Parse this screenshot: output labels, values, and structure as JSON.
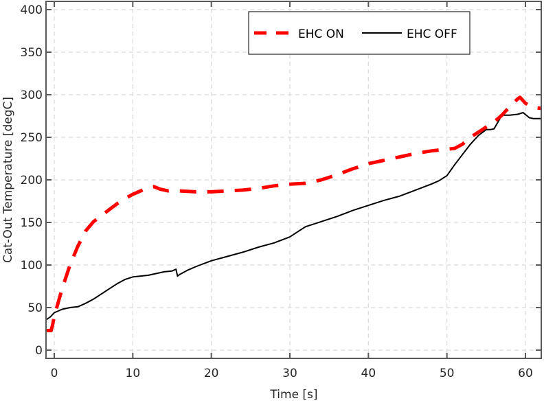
{
  "chart_data": {
    "type": "line",
    "title": "",
    "xlabel": "Time [s]",
    "ylabel": "Cat-Out Temperature [degC]",
    "xlim": [
      -1,
      62
    ],
    "ylim": [
      -10,
      410
    ],
    "xticks": [
      0,
      10,
      20,
      30,
      40,
      50,
      60
    ],
    "yticks": [
      0,
      50,
      100,
      150,
      200,
      250,
      300,
      350,
      400
    ],
    "grid": true,
    "legend_position": "upper right (inside)",
    "series": [
      {
        "name": "EHC ON",
        "color": "#ff0000",
        "style": "dashed",
        "x": [
          -1,
          -0.4,
          -0.2,
          0,
          1,
          2,
          3,
          4,
          5,
          6,
          7,
          8,
          9,
          10,
          11,
          12,
          12.7,
          13.5,
          14.5,
          16,
          18,
          20,
          22,
          24,
          26,
          28,
          30,
          32,
          34,
          36,
          38,
          40,
          42,
          44,
          46,
          48,
          50,
          51,
          52,
          53,
          54,
          55,
          56,
          57,
          58,
          59,
          59.3,
          60,
          61,
          62
        ],
        "y": [
          23,
          23,
          30,
          40,
          72,
          100,
          122,
          140,
          151,
          158,
          165,
          172,
          178,
          183,
          187,
          191,
          192,
          189,
          187,
          187,
          186,
          186,
          187,
          188,
          190,
          193,
          195,
          196,
          200,
          206,
          213,
          219,
          223,
          227,
          231,
          234,
          236,
          237,
          242,
          250,
          256,
          262,
          268,
          276,
          286,
          295,
          297,
          290,
          285,
          284
        ]
      },
      {
        "name": "EHC OFF",
        "color": "#000000",
        "style": "solid",
        "x": [
          -1,
          -0.5,
          0,
          0.5,
          1,
          2,
          3,
          4,
          5,
          6,
          7,
          8,
          9,
          10,
          11,
          12,
          13,
          14,
          15,
          15.5,
          15.7,
          16,
          17,
          18,
          20,
          22,
          24,
          26,
          28,
          30,
          31,
          32,
          34,
          36,
          38,
          40,
          42,
          44,
          46,
          48,
          49,
          50,
          51,
          52,
          53,
          54,
          55,
          55.5,
          56,
          56.5,
          57,
          58,
          59,
          59.7,
          60.5,
          61,
          62
        ],
        "y": [
          36,
          39,
          44,
          46,
          48,
          50,
          51,
          55,
          60,
          66,
          72,
          78,
          83,
          86,
          87,
          88,
          90,
          92,
          93,
          95,
          87,
          89,
          94,
          98,
          105,
          110,
          115,
          121,
          126,
          133,
          139,
          145,
          151,
          157,
          164,
          170,
          176,
          181,
          188,
          195,
          199,
          205,
          218,
          230,
          242,
          252,
          259,
          259,
          260,
          268,
          276,
          276,
          277,
          279,
          273,
          272,
          272
        ]
      }
    ]
  },
  "legend": {
    "items": [
      {
        "label": "EHC ON",
        "color": "#ff0000",
        "style": "dashed"
      },
      {
        "label": "EHC OFF",
        "color": "#000000",
        "style": "solid"
      }
    ]
  },
  "axes": {
    "x_title": "Time [s]",
    "y_title": "Cat-Out Temperature [degC]",
    "x_tick_labels": [
      "0",
      "10",
      "20",
      "30",
      "40",
      "50",
      "60"
    ],
    "y_tick_labels": [
      "0",
      "50",
      "100",
      "150",
      "200",
      "250",
      "300",
      "350",
      "400"
    ]
  },
  "colors": {
    "axis": "#595959",
    "grid": "#d9d9d9",
    "ehc_on": "#ff0000",
    "ehc_off": "#000000"
  }
}
